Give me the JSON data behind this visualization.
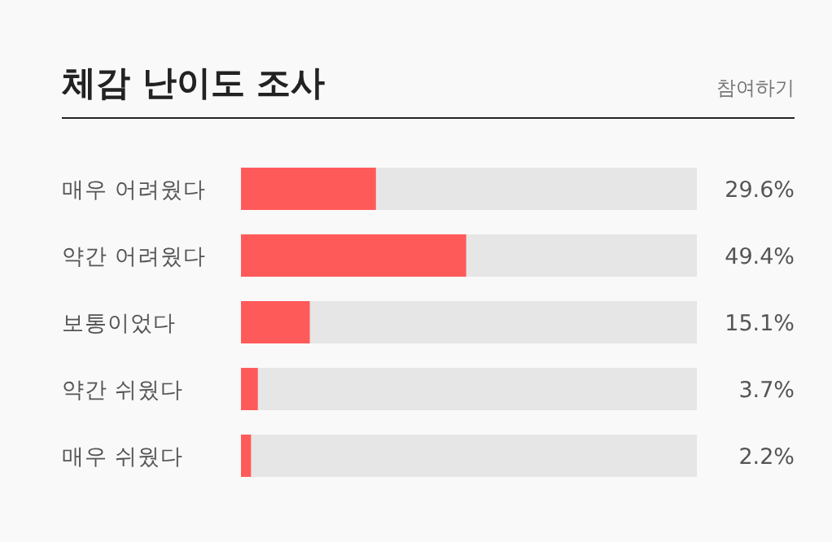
{
  "chart_data": {
    "type": "bar",
    "orientation": "horizontal",
    "title": "체감 난이도 조사",
    "annotations": [
      "참여하기"
    ],
    "categories": [
      "매우 어려웠다",
      "약간 어려웠다",
      "보통이었다",
      "약간 쉬웠다",
      "매우 쉬웠다"
    ],
    "values": [
      29.6,
      49.4,
      15.1,
      3.7,
      2.2
    ],
    "value_labels": [
      "29.6%",
      "49.4%",
      "15.1%",
      "3.7%",
      "2.2%"
    ],
    "color": "#ff5a5a",
    "xlim": [
      0,
      100
    ]
  }
}
